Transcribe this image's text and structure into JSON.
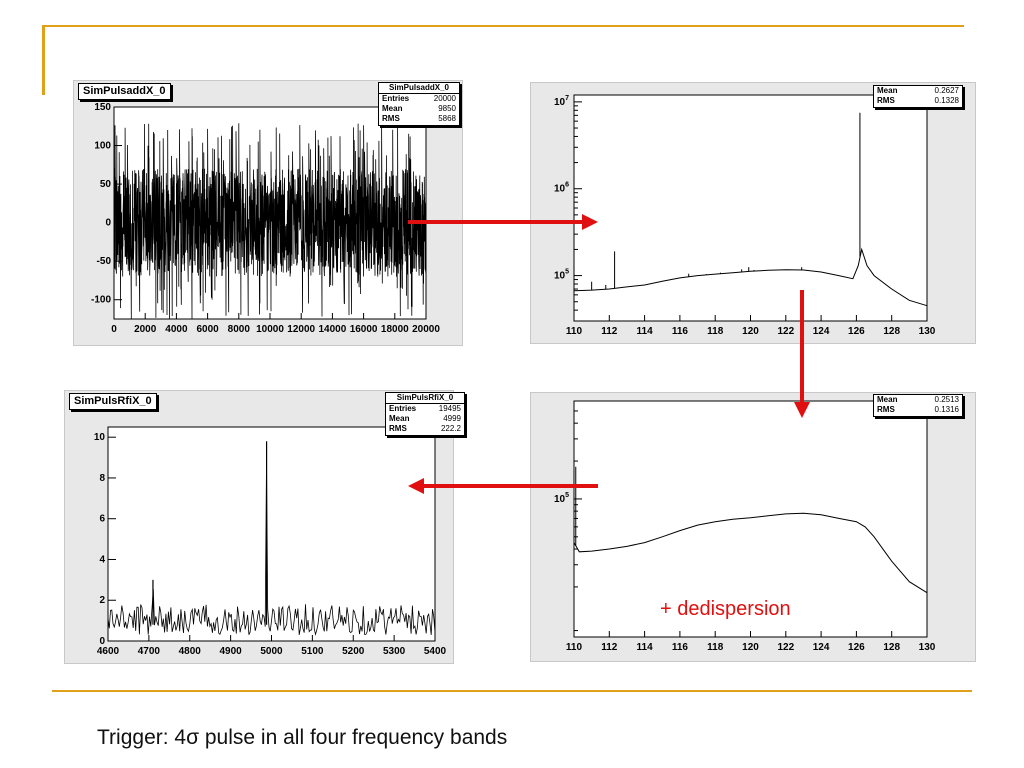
{
  "colors": {
    "accent": "#e0a01a",
    "arrow": "#e01010",
    "panel_bg": "#e8e8e8"
  },
  "annotation": "+ dedispersion",
  "caption": "Trigger: 4σ pulse in all four frequency bands",
  "chart_data": [
    {
      "type": "line",
      "title": "SimPulsaddX_0",
      "stats_name": "SimPulsaddX_0",
      "stats": [
        {
          "k": "Entries",
          "v": "20000"
        },
        {
          "k": "Mean",
          "v": "9850"
        },
        {
          "k": "RMS",
          "v": "5868"
        }
      ],
      "xlim": [
        0,
        20000
      ],
      "ylim": [
        -125,
        150
      ],
      "x_ticks": [
        0,
        2000,
        4000,
        6000,
        8000,
        10000,
        12000,
        14000,
        16000,
        18000,
        20000
      ],
      "y_ticks": [
        -100,
        -50,
        0,
        50,
        100,
        150
      ],
      "log_y": false,
      "description_of_series": "noise",
      "noise_range": [
        -70,
        70
      ],
      "noise_spikes": [
        -125,
        130
      ]
    },
    {
      "type": "line",
      "title": "",
      "stats": [
        {
          "k": "Mean",
          "v": "0.2627"
        },
        {
          "k": "RMS",
          "v": "0.1328"
        }
      ],
      "xlim": [
        110,
        130
      ],
      "log_y": true,
      "ylim": [
        30000,
        12000000
      ],
      "x_ticks": [
        110,
        112,
        114,
        116,
        118,
        120,
        122,
        124,
        126,
        128,
        130
      ],
      "y_ticks": [
        {
          "v": 100000,
          "label": "10^5"
        },
        {
          "v": 1000000,
          "label": "10^6"
        },
        {
          "v": 10000000,
          "label": "10^7"
        }
      ],
      "x": [
        110,
        111,
        112,
        113,
        114,
        115,
        116,
        117,
        118,
        119,
        120,
        121,
        122,
        123,
        124,
        125,
        125.8,
        126.1,
        126.3,
        126.6,
        127,
        128,
        129,
        130
      ],
      "y": [
        67000,
        68000,
        70000,
        74000,
        78000,
        86000,
        94000,
        100000,
        104000,
        108000,
        112000,
        115000,
        117000,
        116000,
        110000,
        100000,
        92000,
        130000,
        200000,
        130000,
        100000,
        70000,
        52000,
        45000
      ],
      "spikes": [
        {
          "x": 111,
          "y": 85000
        },
        {
          "x": 111.8,
          "y": 78000
        },
        {
          "x": 112.3,
          "y": 190000
        },
        {
          "x": 116.5,
          "y": 105000
        },
        {
          "x": 117.5,
          "y": 104000
        },
        {
          "x": 118.3,
          "y": 108000
        },
        {
          "x": 119.5,
          "y": 118000
        },
        {
          "x": 119.9,
          "y": 125000
        },
        {
          "x": 120.2,
          "y": 116000
        },
        {
          "x": 122.9,
          "y": 125000
        },
        {
          "x": 126.2,
          "y": 7500000
        }
      ]
    },
    {
      "type": "line",
      "title": "SimPulsRfiX_0",
      "stats_name": "SimPulsRfiX_0",
      "stats": [
        {
          "k": "Entries",
          "v": "19495"
        },
        {
          "k": "Mean",
          "v": "4999"
        },
        {
          "k": "RMS",
          "v": "222.2"
        }
      ],
      "xlim": [
        4600,
        5400
      ],
      "ylim": [
        0,
        10.5
      ],
      "x_ticks": [
        4600,
        4700,
        4800,
        4900,
        5000,
        5100,
        5200,
        5300,
        5400
      ],
      "y_ticks": [
        0,
        2,
        4,
        6,
        8,
        10
      ],
      "log_y": false,
      "baseline_range": [
        0.3,
        1.8
      ],
      "peaks": [
        {
          "x": 4710,
          "y": 3.0
        },
        {
          "x": 4988,
          "y": 9.8
        }
      ]
    },
    {
      "type": "line",
      "title": "",
      "stats": [
        {
          "k": "Mean",
          "v": "0.2513"
        },
        {
          "k": "RMS",
          "v": "0.1316"
        }
      ],
      "xlim": [
        110,
        130
      ],
      "log_y": true,
      "ylim": [
        8000,
        600000
      ],
      "x_ticks": [
        110,
        112,
        114,
        116,
        118,
        120,
        122,
        124,
        126,
        128,
        130
      ],
      "y_ticks": [
        {
          "v": 100000,
          "label": "10^5"
        }
      ],
      "x": [
        110,
        110.3,
        111,
        112,
        113,
        114,
        115,
        116,
        117,
        118,
        119,
        120,
        121,
        122,
        123,
        124,
        125,
        126,
        126.5,
        127,
        128,
        129,
        130
      ],
      "y": [
        45000,
        38000,
        38500,
        40000,
        42000,
        45000,
        50000,
        56000,
        62000,
        66000,
        69000,
        71000,
        73500,
        76000,
        77000,
        75000,
        70000,
        66000,
        60000,
        50000,
        32000,
        22000,
        18000
      ],
      "spikes": [
        {
          "x": 110.1,
          "y": 180000
        }
      ]
    }
  ]
}
